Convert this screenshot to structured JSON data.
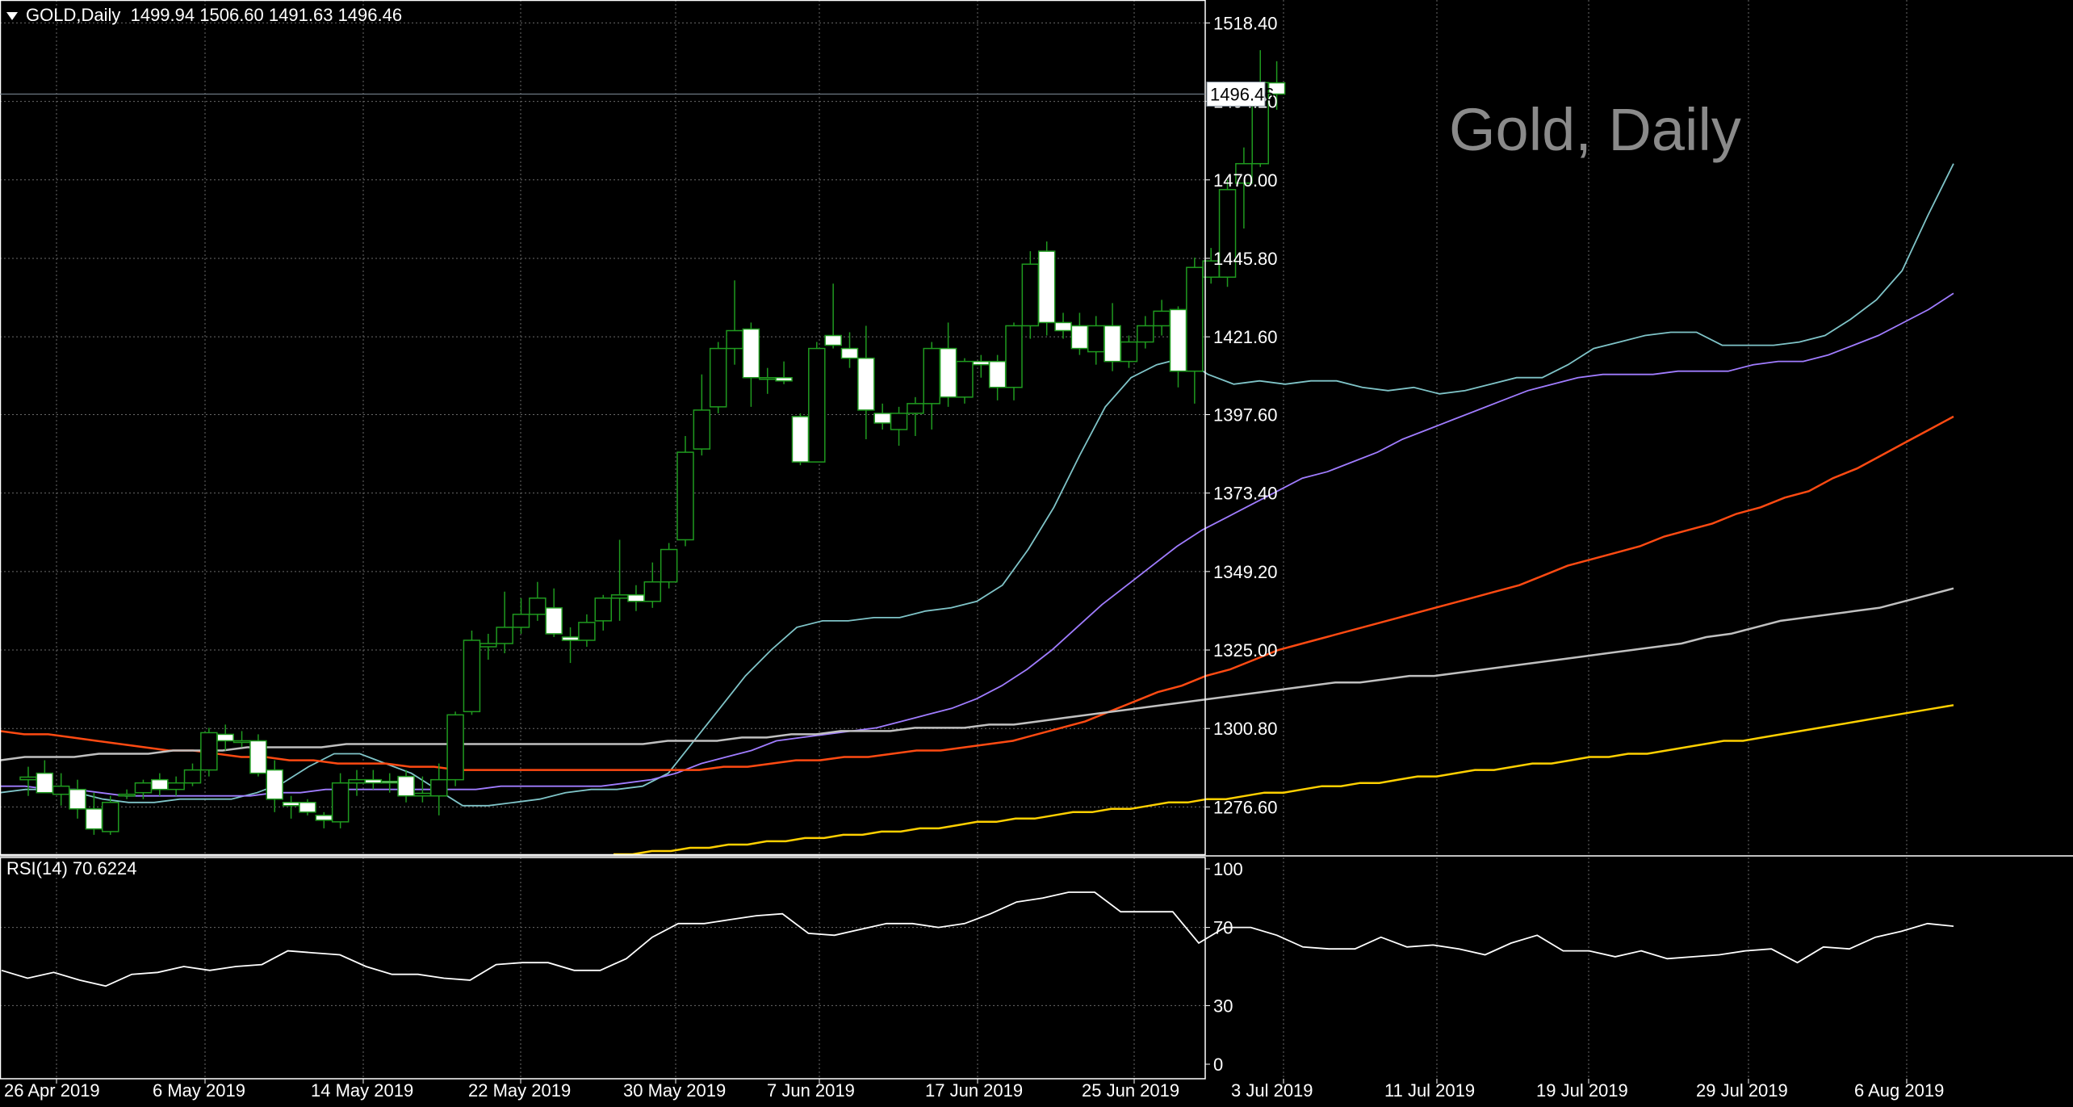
{
  "header": {
    "symbol": "GOLD,Daily",
    "open": "1499.94",
    "high": "1506.60",
    "low": "1491.63",
    "close": "1496.46"
  },
  "watermark": "Gold, Daily",
  "rsi_header": "RSI(14) 70.6224",
  "current_price_label": "1496.46",
  "colors": {
    "background": "#000000",
    "grid": "#6a6a6a",
    "bull_candle": "#000000",
    "bear_candle": "#ffffff",
    "wick": "#1f9a1f",
    "ma_fast": "#7fc4c8",
    "ma_mid": "#a07cff",
    "ma_slow": "#ff4a12",
    "ma_longer": "#c0c0c0",
    "ma_longest": "#ffd000",
    "rsi_line": "#ffffff"
  },
  "chart_data": [
    {
      "type": "candlestick",
      "title": "Gold, Daily",
      "ylim": [
        1262,
        1520
      ],
      "y_ticks": [
        "1518.40",
        "1494.20",
        "1470.00",
        "1445.80",
        "1421.60",
        "1397.60",
        "1373.40",
        "1349.20",
        "1325.00",
        "1300.80",
        "1276.60"
      ],
      "x_ticks": [
        "26 Apr 2019",
        "6 May 2019",
        "14 May 2019",
        "22 May 2019",
        "30 May 2019",
        "7 Jun 2019",
        "17 Jun 2019",
        "25 Jun 2019",
        "3 Jul 2019",
        "11 Jul 2019",
        "19 Jul 2019",
        "29 Jul 2019",
        "6 Aug 2019"
      ],
      "candles": [
        {
          "o": 1285.0,
          "h": 1289.0,
          "l": 1280.0,
          "c": 1285.8
        },
        {
          "o": 1287.0,
          "h": 1291.0,
          "l": 1283.0,
          "c": 1281.0
        },
        {
          "o": 1280.5,
          "h": 1287.0,
          "l": 1277.0,
          "c": 1283.0
        },
        {
          "o": 1282.0,
          "h": 1285.0,
          "l": 1273.0,
          "c": 1276.0
        },
        {
          "o": 1276.0,
          "h": 1281.0,
          "l": 1268.0,
          "c": 1269.8
        },
        {
          "o": 1269.0,
          "h": 1280.0,
          "l": 1268.0,
          "c": 1278.0
        },
        {
          "o": 1280.5,
          "h": 1282.0,
          "l": 1279.0,
          "c": 1280.5
        },
        {
          "o": 1281.0,
          "h": 1285.0,
          "l": 1279.0,
          "c": 1284.0
        },
        {
          "o": 1285.0,
          "h": 1287.0,
          "l": 1280.0,
          "c": 1282.0
        },
        {
          "o": 1282.0,
          "h": 1286.0,
          "l": 1280.0,
          "c": 1284.0
        },
        {
          "o": 1284.0,
          "h": 1290.0,
          "l": 1283.0,
          "c": 1288.0
        },
        {
          "o": 1288.0,
          "h": 1301.0,
          "l": 1286.0,
          "c": 1299.5
        },
        {
          "o": 1299.0,
          "h": 1302.0,
          "l": 1294.0,
          "c": 1297.0
        },
        {
          "o": 1297.0,
          "h": 1300.0,
          "l": 1295.0,
          "c": 1297.0
        },
        {
          "o": 1297.0,
          "h": 1299.0,
          "l": 1286.0,
          "c": 1287.0
        },
        {
          "o": 1288.0,
          "h": 1291.0,
          "l": 1275.0,
          "c": 1279.0
        },
        {
          "o": 1278.0,
          "h": 1280.0,
          "l": 1273.0,
          "c": 1277.0
        },
        {
          "o": 1278.0,
          "h": 1279.0,
          "l": 1274.0,
          "c": 1275.0
        },
        {
          "o": 1274.0,
          "h": 1275.0,
          "l": 1270.0,
          "c": 1272.5
        },
        {
          "o": 1272.0,
          "h": 1287.0,
          "l": 1270.0,
          "c": 1284.0
        },
        {
          "o": 1284.0,
          "h": 1288.0,
          "l": 1280.0,
          "c": 1285.0
        },
        {
          "o": 1285.0,
          "h": 1288.0,
          "l": 1282.0,
          "c": 1284.0
        },
        {
          "o": 1284.5,
          "h": 1287.0,
          "l": 1281.0,
          "c": 1284.0
        },
        {
          "o": 1286.0,
          "h": 1288.0,
          "l": 1278.0,
          "c": 1280.0
        },
        {
          "o": 1280.0,
          "h": 1286.0,
          "l": 1278.0,
          "c": 1280.8
        },
        {
          "o": 1280.0,
          "h": 1290.0,
          "l": 1274.0,
          "c": 1285.0
        },
        {
          "o": 1285.0,
          "h": 1306.0,
          "l": 1283.0,
          "c": 1305.0
        },
        {
          "o": 1306.0,
          "h": 1331.0,
          "l": 1305.0,
          "c": 1328.0
        },
        {
          "o": 1326.0,
          "h": 1330.0,
          "l": 1322.0,
          "c": 1327.0
        },
        {
          "o": 1327.0,
          "h": 1343.0,
          "l": 1324.0,
          "c": 1332.0
        },
        {
          "o": 1332.0,
          "h": 1341.0,
          "l": 1330.0,
          "c": 1336.0
        },
        {
          "o": 1336.0,
          "h": 1346.0,
          "l": 1334.0,
          "c": 1341.0
        },
        {
          "o": 1338.0,
          "h": 1344.0,
          "l": 1329.0,
          "c": 1330.0
        },
        {
          "o": 1329.0,
          "h": 1332.0,
          "l": 1321.0,
          "c": 1328.0
        },
        {
          "o": 1328.0,
          "h": 1336.0,
          "l": 1326.0,
          "c": 1333.5
        },
        {
          "o": 1334.0,
          "h": 1342.0,
          "l": 1331.0,
          "c": 1341.0
        },
        {
          "o": 1341.0,
          "h": 1359.0,
          "l": 1334.0,
          "c": 1342.0
        },
        {
          "o": 1342.0,
          "h": 1345.0,
          "l": 1337.0,
          "c": 1340.0
        },
        {
          "o": 1340.0,
          "h": 1352.0,
          "l": 1338.0,
          "c": 1346.0
        },
        {
          "o": 1346.0,
          "h": 1358.0,
          "l": 1344.0,
          "c": 1356.0
        },
        {
          "o": 1359.0,
          "h": 1391.0,
          "l": 1357.0,
          "c": 1386.0
        },
        {
          "o": 1387.0,
          "h": 1410.0,
          "l": 1385.0,
          "c": 1399.0
        },
        {
          "o": 1400.0,
          "h": 1420.0,
          "l": 1398.0,
          "c": 1418.0
        },
        {
          "o": 1418.0,
          "h": 1439.0,
          "l": 1413.0,
          "c": 1423.5
        },
        {
          "o": 1424.0,
          "h": 1426.0,
          "l": 1400.0,
          "c": 1409.0
        },
        {
          "o": 1409.0,
          "h": 1412.0,
          "l": 1404.0,
          "c": 1409.0
        },
        {
          "o": 1409.0,
          "h": 1414.0,
          "l": 1407.0,
          "c": 1408.0
        },
        {
          "o": 1397.0,
          "h": 1398.0,
          "l": 1382.0,
          "c": 1383.0
        },
        {
          "o": 1383.0,
          "h": 1420.0,
          "l": 1383.0,
          "c": 1418.0
        },
        {
          "o": 1422.0,
          "h": 1438.0,
          "l": 1418.0,
          "c": 1419.0
        },
        {
          "o": 1418.0,
          "h": 1423.0,
          "l": 1412.0,
          "c": 1415.0
        },
        {
          "o": 1415.0,
          "h": 1425.0,
          "l": 1390.0,
          "c": 1399.0
        },
        {
          "o": 1398.0,
          "h": 1401.0,
          "l": 1393.0,
          "c": 1395.0
        },
        {
          "o": 1393.0,
          "h": 1400.0,
          "l": 1388.0,
          "c": 1398.0
        },
        {
          "o": 1398.0,
          "h": 1403.0,
          "l": 1391.0,
          "c": 1401.0
        },
        {
          "o": 1401.0,
          "h": 1420.0,
          "l": 1393.0,
          "c": 1418.0
        },
        {
          "o": 1418.0,
          "h": 1426.0,
          "l": 1400.0,
          "c": 1403.0
        },
        {
          "o": 1403.0,
          "h": 1415.0,
          "l": 1401.0,
          "c": 1414.0
        },
        {
          "o": 1414.0,
          "h": 1416.0,
          "l": 1409.0,
          "c": 1413.0
        },
        {
          "o": 1414.0,
          "h": 1416.0,
          "l": 1402.0,
          "c": 1406.0
        },
        {
          "o": 1406.0,
          "h": 1426.0,
          "l": 1402.0,
          "c": 1425.0
        },
        {
          "o": 1425.0,
          "h": 1448.0,
          "l": 1421.0,
          "c": 1444.0
        },
        {
          "o": 1448.0,
          "h": 1451.0,
          "l": 1422.0,
          "c": 1426.0
        },
        {
          "o": 1426.0,
          "h": 1429.0,
          "l": 1421.0,
          "c": 1423.5
        },
        {
          "o": 1425.0,
          "h": 1429.0,
          "l": 1416.0,
          "c": 1418.0
        },
        {
          "o": 1417.0,
          "h": 1428.0,
          "l": 1413.0,
          "c": 1425.0
        },
        {
          "o": 1425.0,
          "h": 1432.0,
          "l": 1411.0,
          "c": 1414.0
        },
        {
          "o": 1414.0,
          "h": 1422.0,
          "l": 1412.0,
          "c": 1420.0
        },
        {
          "o": 1420.0,
          "h": 1428.0,
          "l": 1418.0,
          "c": 1425.0
        },
        {
          "o": 1425.0,
          "h": 1433.0,
          "l": 1422.0,
          "c": 1429.5
        },
        {
          "o": 1430.0,
          "h": 1431.0,
          "l": 1406.0,
          "c": 1411.0
        },
        {
          "o": 1411.0,
          "h": 1446.0,
          "l": 1401.0,
          "c": 1443.0
        },
        {
          "o": 1440.0,
          "h": 1449.0,
          "l": 1438.0,
          "c": 1445.0
        },
        {
          "o": 1440.0,
          "h": 1470.0,
          "l": 1437.0,
          "c": 1467.0
        },
        {
          "o": 1469.0,
          "h": 1480.0,
          "l": 1455.0,
          "c": 1475.0
        },
        {
          "o": 1475.0,
          "h": 1510.0,
          "l": 1474.0,
          "c": 1500.0
        },
        {
          "o": 1499.94,
          "h": 1506.6,
          "l": 1491.63,
          "c": 1496.46
        }
      ],
      "ma_series": [
        {
          "color": "#7fc4c8",
          "values": [
            1281,
            1282,
            1282,
            1281,
            1279,
            1278,
            1278,
            1279,
            1279,
            1279,
            1281,
            1284,
            1289,
            1293,
            1293,
            1290,
            1287,
            1282,
            1277,
            1277,
            1278,
            1279,
            1281,
            1282,
            1282,
            1283,
            1287,
            1297,
            1307,
            1317,
            1325,
            1332,
            1334,
            1334,
            1335,
            1335,
            1337,
            1338,
            1340,
            1345,
            1356,
            1369,
            1385,
            1400,
            1409,
            1413,
            1415,
            1410,
            1407,
            1408,
            1407,
            1408,
            1408,
            1406,
            1405,
            1406,
            1404,
            1405,
            1407,
            1409,
            1409,
            1413,
            1418,
            1420,
            1422,
            1423,
            1423,
            1419,
            1419,
            1419,
            1420,
            1422,
            1427,
            1433,
            1442,
            1459,
            1475
          ]
        },
        {
          "color": "#a07cff",
          "values": [
            1283,
            1283,
            1282,
            1282,
            1281,
            1280,
            1280,
            1280,
            1280,
            1280,
            1280,
            1281,
            1281,
            1282,
            1282,
            1282,
            1282,
            1282,
            1282,
            1282,
            1283,
            1283,
            1283,
            1283,
            1283,
            1284,
            1285,
            1287,
            1290,
            1292,
            1294,
            1297,
            1298,
            1299,
            1300,
            1301,
            1303,
            1305,
            1307,
            1310,
            1314,
            1319,
            1325,
            1332,
            1339,
            1345,
            1351,
            1357,
            1362,
            1366,
            1370,
            1374,
            1378,
            1380,
            1383,
            1386,
            1390,
            1393,
            1396,
            1399,
            1402,
            1405,
            1407,
            1409,
            1410,
            1410,
            1410,
            1411,
            1411,
            1411,
            1413,
            1414,
            1414,
            1416,
            1419,
            1422,
            1426,
            1430,
            1435
          ]
        },
        {
          "color": "#ff4a12",
          "values": [
            1300,
            1299,
            1299,
            1298,
            1297,
            1296,
            1295,
            1294,
            1294,
            1293,
            1292,
            1292,
            1291,
            1291,
            1290,
            1290,
            1290,
            1289,
            1289,
            1288,
            1288,
            1288,
            1288,
            1288,
            1288,
            1288,
            1288,
            1288,
            1288,
            1288,
            1289,
            1289,
            1290,
            1291,
            1291,
            1292,
            1292,
            1293,
            1294,
            1294,
            1295,
            1296,
            1297,
            1299,
            1301,
            1303,
            1306,
            1309,
            1312,
            1314,
            1317,
            1319,
            1322,
            1325,
            1327,
            1329,
            1331,
            1333,
            1335,
            1337,
            1339,
            1341,
            1343,
            1345,
            1348,
            1351,
            1353,
            1355,
            1357,
            1360,
            1362,
            1364,
            1367,
            1369,
            1372,
            1374,
            1378,
            1381,
            1385,
            1389,
            1393,
            1397
          ]
        },
        {
          "color": "#c0c0c0",
          "values": [
            1291,
            1292,
            1292,
            1292,
            1293,
            1293,
            1293,
            1294,
            1294,
            1294,
            1295,
            1295,
            1295,
            1295,
            1296,
            1296,
            1296,
            1296,
            1296,
            1296,
            1296,
            1296,
            1296,
            1296,
            1296,
            1296,
            1296,
            1297,
            1297,
            1297,
            1298,
            1298,
            1299,
            1299,
            1300,
            1300,
            1300,
            1301,
            1301,
            1301,
            1302,
            1302,
            1303,
            1304,
            1305,
            1306,
            1307,
            1308,
            1309,
            1310,
            1311,
            1312,
            1313,
            1314,
            1315,
            1315,
            1316,
            1317,
            1317,
            1318,
            1319,
            1320,
            1321,
            1322,
            1323,
            1324,
            1325,
            1326,
            1327,
            1329,
            1330,
            1332,
            1334,
            1335,
            1336,
            1337,
            1338,
            1340,
            1342,
            1344
          ]
        },
        {
          "color": "#ffd000",
          "values": [
            1262,
            1262,
            1263,
            1263,
            1264,
            1264,
            1265,
            1265,
            1266,
            1266,
            1267,
            1267,
            1268,
            1268,
            1269,
            1269,
            1270,
            1270,
            1271,
            1272,
            1272,
            1273,
            1273,
            1274,
            1275,
            1275,
            1276,
            1276,
            1277,
            1278,
            1278,
            1279,
            1279,
            1280,
            1281,
            1281,
            1282,
            1283,
            1283,
            1284,
            1284,
            1285,
            1286,
            1286,
            1287,
            1288,
            1288,
            1289,
            1290,
            1290,
            1291,
            1292,
            1292,
            1293,
            1293,
            1294,
            1295,
            1296,
            1297,
            1297,
            1298,
            1299,
            1300,
            1301,
            1302,
            1303,
            1304,
            1305,
            1306,
            1307,
            1308
          ]
        }
      ],
      "current_price": 1496.46
    },
    {
      "type": "line",
      "title": "RSI(14) 70.6224",
      "ylim": [
        0,
        100
      ],
      "y_ticks": [
        "100",
        "70",
        "30",
        "0"
      ],
      "series": [
        {
          "name": "RSI(14)",
          "values": [
            48,
            44,
            47,
            43,
            40,
            46,
            47,
            50,
            48,
            50,
            51,
            58,
            57,
            56,
            50,
            46,
            46,
            44,
            43,
            51,
            52,
            52,
            48,
            48,
            54,
            65,
            72,
            72,
            74,
            76,
            77,
            67,
            66,
            69,
            72,
            72,
            70,
            72,
            77,
            83,
            85,
            88,
            88,
            78,
            78,
            78,
            62,
            70,
            70,
            66,
            60,
            59,
            59,
            65,
            60,
            61,
            59,
            56,
            62,
            66,
            58,
            58,
            55,
            58,
            54,
            55,
            56,
            58,
            59,
            52,
            60,
            59,
            65,
            68,
            72,
            70.6224
          ]
        }
      ]
    }
  ]
}
